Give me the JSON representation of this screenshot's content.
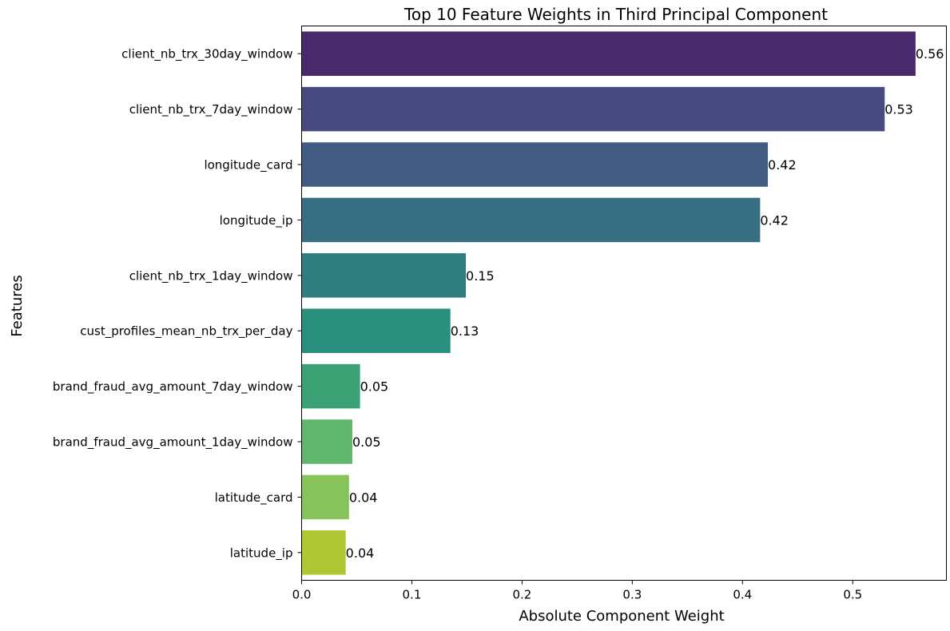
{
  "chart_data": {
    "type": "bar",
    "orientation": "horizontal",
    "title": "Top 10 Feature Weights in Third Principal Component",
    "xlabel": "Absolute Component Weight",
    "ylabel": "Features",
    "categories": [
      "client_nb_trx_30day_window",
      "client_nb_trx_7day_window",
      "longitude_card",
      "longitude_ip",
      "client_nb_trx_1day_window",
      "cust_profiles_mean_nb_trx_per_day",
      "brand_fraud_avg_amount_7day_window",
      "brand_fraud_avg_amount_1day_window",
      "latitude_card",
      "latitude_ip"
    ],
    "values": [
      0.557,
      0.529,
      0.423,
      0.416,
      0.149,
      0.135,
      0.053,
      0.046,
      0.043,
      0.04
    ],
    "data_labels": [
      "0.56",
      "0.53",
      "0.42",
      "0.42",
      "0.15",
      "0.13",
      "0.05",
      "0.05",
      "0.04",
      "0.04"
    ],
    "colors": [
      "#482a6c",
      "#474a7e",
      "#435d82",
      "#386e82",
      "#307d80",
      "#2b8f7e",
      "#3aa275",
      "#5fb66c",
      "#86c35a",
      "#b0c735"
    ],
    "xlim": [
      0,
      0.585
    ],
    "xticks": [
      0.0,
      0.1,
      0.2,
      0.3,
      0.4,
      0.5
    ],
    "xtick_labels": [
      "0.0",
      "0.1",
      "0.2",
      "0.3",
      "0.4",
      "0.5"
    ],
    "grid": false,
    "legend": false
  }
}
